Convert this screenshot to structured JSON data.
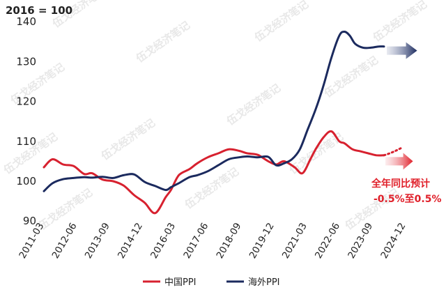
{
  "chart_data": {
    "type": "line",
    "title": "",
    "unit_label": "2016 = 100",
    "xlabel": "",
    "ylabel": "",
    "ylim": [
      90,
      140
    ],
    "yticks": [
      90,
      100,
      110,
      120,
      130,
      140
    ],
    "xticks": [
      "2011-03",
      "2012-06",
      "2013-09",
      "2014-12",
      "2016-03",
      "2017-06",
      "2018-09",
      "2019-12",
      "2021-03",
      "2022-06",
      "2023-09",
      "2024-12"
    ],
    "grid": false,
    "legend_position": "bottom-center",
    "series": [
      {
        "name": "中国PPI",
        "color": "#d7212f",
        "x": [
          2011.17,
          2011.5,
          2011.9,
          2012.3,
          2012.7,
          2013.0,
          2013.4,
          2013.8,
          2014.2,
          2014.6,
          2015.0,
          2015.4,
          2015.8,
          2016.0,
          2016.3,
          2016.7,
          2017.0,
          2017.4,
          2017.8,
          2018.2,
          2018.6,
          2018.9,
          2019.3,
          2019.7,
          2020.0,
          2020.3,
          2020.7,
          2021.0,
          2021.3,
          2021.5,
          2021.8,
          2022.1,
          2022.4,
          2022.6,
          2022.9,
          2023.2,
          2023.5,
          2023.8,
          2024.1
        ],
        "values": [
          103.5,
          105.5,
          104.2,
          103.8,
          101.8,
          102.0,
          100.4,
          100.0,
          98.9,
          96.5,
          94.6,
          92.0,
          96.0,
          97.8,
          101.5,
          103.0,
          104.5,
          106.0,
          107.0,
          108.0,
          107.6,
          107.0,
          106.6,
          105.0,
          104.2,
          105.0,
          103.5,
          102.0,
          105.5,
          108.0,
          111.0,
          112.5,
          110.0,
          109.5,
          108.0,
          107.5,
          107.0,
          106.5,
          106.5
        ]
      },
      {
        "name": "海外PPI",
        "color": "#1b2a5e",
        "x": [
          2011.17,
          2011.5,
          2011.9,
          2012.3,
          2012.7,
          2013.0,
          2013.4,
          2013.8,
          2014.2,
          2014.6,
          2015.0,
          2015.4,
          2015.8,
          2016.0,
          2016.3,
          2016.7,
          2017.0,
          2017.4,
          2017.8,
          2018.2,
          2018.6,
          2018.9,
          2019.3,
          2019.7,
          2020.0,
          2020.3,
          2020.6,
          2020.9,
          2021.2,
          2021.5,
          2021.8,
          2022.1,
          2022.4,
          2022.6,
          2022.8,
          2023.0,
          2023.3,
          2023.6,
          2023.9,
          2024.1
        ],
        "values": [
          97.5,
          99.5,
          100.5,
          100.8,
          101.0,
          100.9,
          101.1,
          100.8,
          101.5,
          101.7,
          99.8,
          98.8,
          97.8,
          98.5,
          99.5,
          101.0,
          101.5,
          102.5,
          104.0,
          105.5,
          106.0,
          106.2,
          106.0,
          106.1,
          104.0,
          104.5,
          105.5,
          108.0,
          113.0,
          118.0,
          124.0,
          131.0,
          136.5,
          137.5,
          136.5,
          134.5,
          133.5,
          133.5,
          133.8,
          133.8
        ]
      }
    ],
    "projections": [
      {
        "series": "中国PPI",
        "from": [
          2024.1,
          106.5
        ],
        "to": [
          2024.8,
          108.5
        ],
        "arrow_to": [
          2025.2,
          105.0
        ]
      },
      {
        "series": "海外PPI",
        "from": [
          2024.1,
          133.8
        ],
        "to": [
          2025.2,
          133.8
        ]
      }
    ],
    "annotations": [
      {
        "text": "全年同比预计",
        "color": "#e0202a"
      },
      {
        "text": "-0.5%至0.5%",
        "color": "#e0202a"
      }
    ],
    "watermark": "伍戈经济笔记"
  }
}
